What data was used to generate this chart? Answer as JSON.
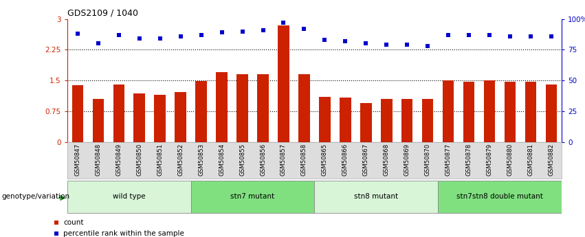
{
  "title": "GDS2109 / 1040",
  "samples": [
    "GSM50847",
    "GSM50848",
    "GSM50849",
    "GSM50850",
    "GSM50851",
    "GSM50852",
    "GSM50853",
    "GSM50854",
    "GSM50855",
    "GSM50856",
    "GSM50857",
    "GSM50858",
    "GSM50865",
    "GSM50866",
    "GSM50867",
    "GSM50868",
    "GSM50869",
    "GSM50870",
    "GSM50877",
    "GSM50878",
    "GSM50879",
    "GSM50880",
    "GSM50881",
    "GSM50882"
  ],
  "bar_values": [
    1.38,
    1.05,
    1.4,
    1.18,
    1.15,
    1.22,
    1.48,
    1.7,
    1.65,
    1.65,
    2.84,
    1.65,
    1.1,
    1.08,
    0.95,
    1.05,
    1.05,
    1.05,
    1.5,
    1.47,
    1.5,
    1.47,
    1.47,
    1.4
  ],
  "percentile_values": [
    88,
    80,
    87,
    84,
    84,
    86,
    87,
    89,
    90,
    91,
    97,
    92,
    83,
    82,
    80,
    79,
    79,
    78,
    87,
    87,
    87,
    86,
    86,
    86
  ],
  "bar_color": "#cc2200",
  "dot_color": "#0000cc",
  "ylim_left": [
    0,
    3
  ],
  "ylim_right": [
    0,
    100
  ],
  "yticks_left": [
    0,
    0.75,
    1.5,
    2.25,
    3
  ],
  "ytick_labels_left": [
    "0",
    "0.75",
    "1.5",
    "2.25",
    "3"
  ],
  "yticks_right": [
    0,
    25,
    50,
    75,
    100
  ],
  "ytick_labels_right": [
    "0",
    "25",
    "50",
    "75",
    "100%"
  ],
  "groups": [
    {
      "label": "wild type",
      "start": 0,
      "end": 5,
      "color": "#d8f5d8"
    },
    {
      "label": "stn7 mutant",
      "start": 6,
      "end": 11,
      "color": "#80e080"
    },
    {
      "label": "stn8 mutant",
      "start": 12,
      "end": 17,
      "color": "#d8f5d8"
    },
    {
      "label": "stn7stn8 double mutant",
      "start": 18,
      "end": 23,
      "color": "#80e080"
    }
  ],
  "xlabel_genotype": "genotype/variation",
  "dotted_lines": [
    0.75,
    1.5,
    2.25
  ],
  "bar_width": 0.55
}
